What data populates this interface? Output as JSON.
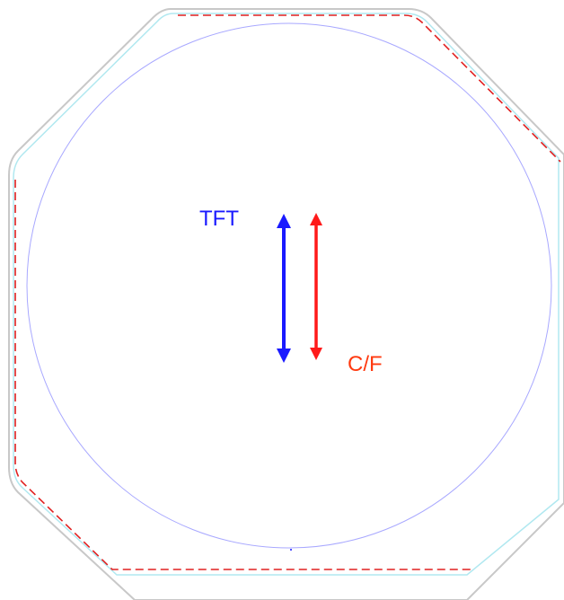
{
  "labels": {
    "tft": "TFT",
    "cf": "C/F"
  },
  "colors": {
    "tft": "#1a1aff",
    "cf": "#ff1a1a",
    "cf_label": "#ff3a10",
    "outline": "#c8c8c8",
    "inner_outline": "#b0e8f0",
    "circle": "#a8a8ff",
    "dashed": "#e02020"
  }
}
